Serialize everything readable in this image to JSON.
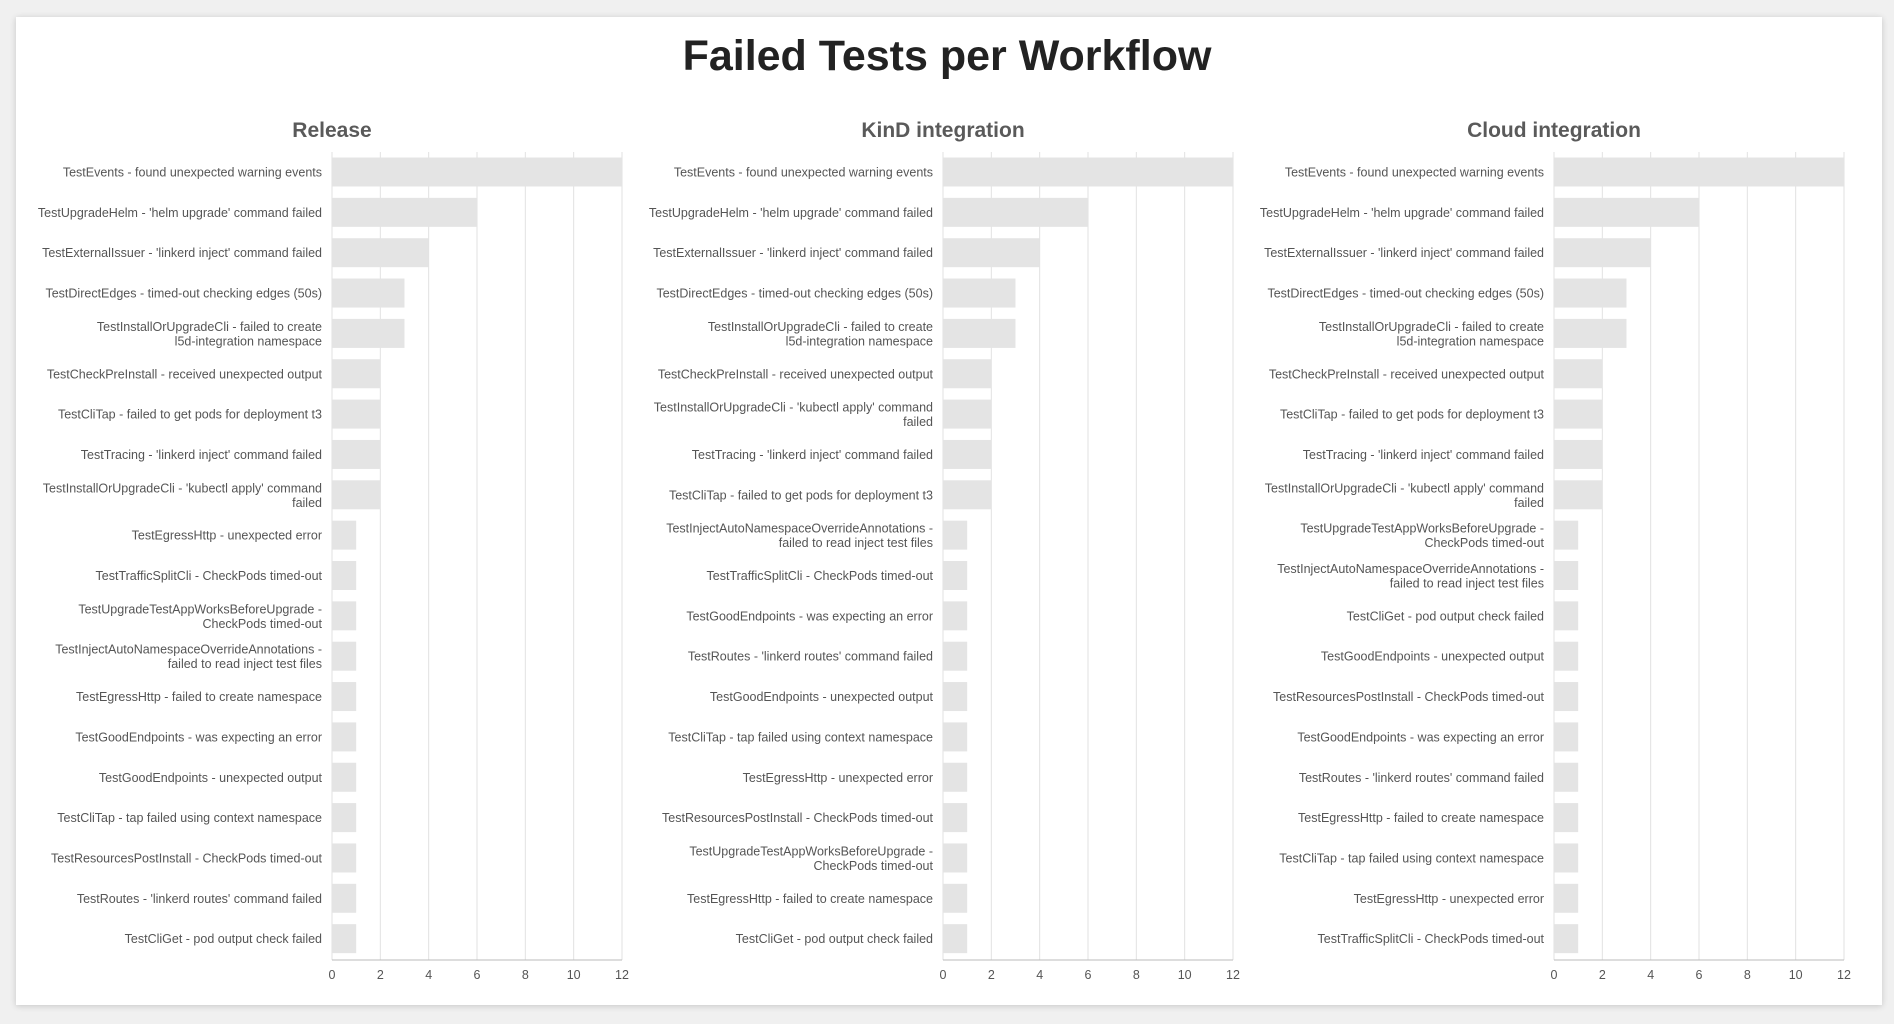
{
  "title": "Failed Tests per Workflow",
  "colors": {
    "bar": "#e4e4e4",
    "grid": "#e2e2e2",
    "text": "#555555",
    "title": "#222222"
  },
  "chart_data": [
    {
      "type": "bar",
      "orientation": "horizontal",
      "title": "Release",
      "xlim": [
        0,
        12
      ],
      "xticks": [
        0,
        2,
        4,
        6,
        8,
        10,
        12
      ],
      "grid": true,
      "categories": [
        "TestEvents - found unexpected warning events",
        "TestUpgradeHelm - 'helm upgrade' command failed",
        "TestExternalIssuer - 'linkerd inject' command failed",
        "TestDirectEdges - timed-out checking edges (50s)",
        "TestInstallOrUpgradeCli - failed to create l5d-integration namespace",
        "TestCheckPreInstall - received unexpected output",
        "TestCliTap - failed to get pods for deployment t3",
        "TestTracing - 'linkerd inject' command failed",
        "TestInstallOrUpgradeCli - 'kubectl apply' command failed",
        "TestEgressHttp - unexpected error",
        "TestTrafficSplitCli - CheckPods timed-out",
        "TestUpgradeTestAppWorksBeforeUpgrade - CheckPods timed-out",
        "TestInjectAutoNamespaceOverrideAnnotations - failed to read inject test files",
        "TestEgressHttp - failed to create namespace",
        "TestGoodEndpoints - was expecting an error",
        "TestGoodEndpoints - unexpected output",
        "TestCliTap - tap failed using context namespace",
        "TestResourcesPostInstall - CheckPods timed-out",
        "TestRoutes - 'linkerd routes' command failed",
        "TestCliGet - pod output check failed"
      ],
      "values": [
        12,
        6,
        4,
        3,
        3,
        2,
        2,
        2,
        2,
        1,
        1,
        1,
        1,
        1,
        1,
        1,
        1,
        1,
        1,
        1
      ]
    },
    {
      "type": "bar",
      "orientation": "horizontal",
      "title": "KinD integration",
      "xlim": [
        0,
        12
      ],
      "xticks": [
        0,
        2,
        4,
        6,
        8,
        10,
        12
      ],
      "grid": true,
      "categories": [
        "TestEvents - found unexpected warning events",
        "TestUpgradeHelm - 'helm upgrade' command failed",
        "TestExternalIssuer - 'linkerd inject' command failed",
        "TestDirectEdges - timed-out checking edges (50s)",
        "TestInstallOrUpgradeCli - failed to create l5d-integration namespace",
        "TestCheckPreInstall - received unexpected output",
        "TestInstallOrUpgradeCli - 'kubectl apply' command failed",
        "TestTracing - 'linkerd inject' command failed",
        "TestCliTap - failed to get pods for deployment t3",
        "TestInjectAutoNamespaceOverrideAnnotations - failed to read inject test files",
        "TestTrafficSplitCli - CheckPods timed-out",
        "TestGoodEndpoints - was expecting an error",
        "TestRoutes - 'linkerd routes' command failed",
        "TestGoodEndpoints - unexpected output",
        "TestCliTap - tap failed using context namespace",
        "TestEgressHttp - unexpected error",
        "TestResourcesPostInstall - CheckPods timed-out",
        "TestUpgradeTestAppWorksBeforeUpgrade - CheckPods timed-out",
        "TestEgressHttp - failed to create namespace",
        "TestCliGet - pod output check failed"
      ],
      "values": [
        12,
        6,
        4,
        3,
        3,
        2,
        2,
        2,
        2,
        1,
        1,
        1,
        1,
        1,
        1,
        1,
        1,
        1,
        1,
        1
      ]
    },
    {
      "type": "bar",
      "orientation": "horizontal",
      "title": "Cloud integration",
      "xlim": [
        0,
        12
      ],
      "xticks": [
        0,
        2,
        4,
        6,
        8,
        10,
        12
      ],
      "grid": true,
      "categories": [
        "TestEvents - found unexpected warning events",
        "TestUpgradeHelm - 'helm upgrade' command failed",
        "TestExternalIssuer - 'linkerd inject' command failed",
        "TestDirectEdges - timed-out checking edges (50s)",
        "TestInstallOrUpgradeCli - failed to create l5d-integration namespace",
        "TestCheckPreInstall - received unexpected output",
        "TestCliTap - failed to get pods for deployment t3",
        "TestTracing - 'linkerd inject' command failed",
        "TestInstallOrUpgradeCli - 'kubectl apply' command failed",
        "TestUpgradeTestAppWorksBeforeUpgrade - CheckPods timed-out",
        "TestInjectAutoNamespaceOverrideAnnotations - failed to read inject test files",
        "TestCliGet - pod output check failed",
        "TestGoodEndpoints - unexpected output",
        "TestResourcesPostInstall - CheckPods timed-out",
        "TestGoodEndpoints - was expecting an error",
        "TestRoutes - 'linkerd routes' command failed",
        "TestEgressHttp - failed to create namespace",
        "TestCliTap - tap failed using context namespace",
        "TestEgressHttp - unexpected error",
        "TestTrafficSplitCli - CheckPods timed-out"
      ],
      "values": [
        12,
        6,
        4,
        3,
        3,
        2,
        2,
        2,
        2,
        1,
        1,
        1,
        1,
        1,
        1,
        1,
        1,
        1,
        1,
        1
      ]
    }
  ]
}
